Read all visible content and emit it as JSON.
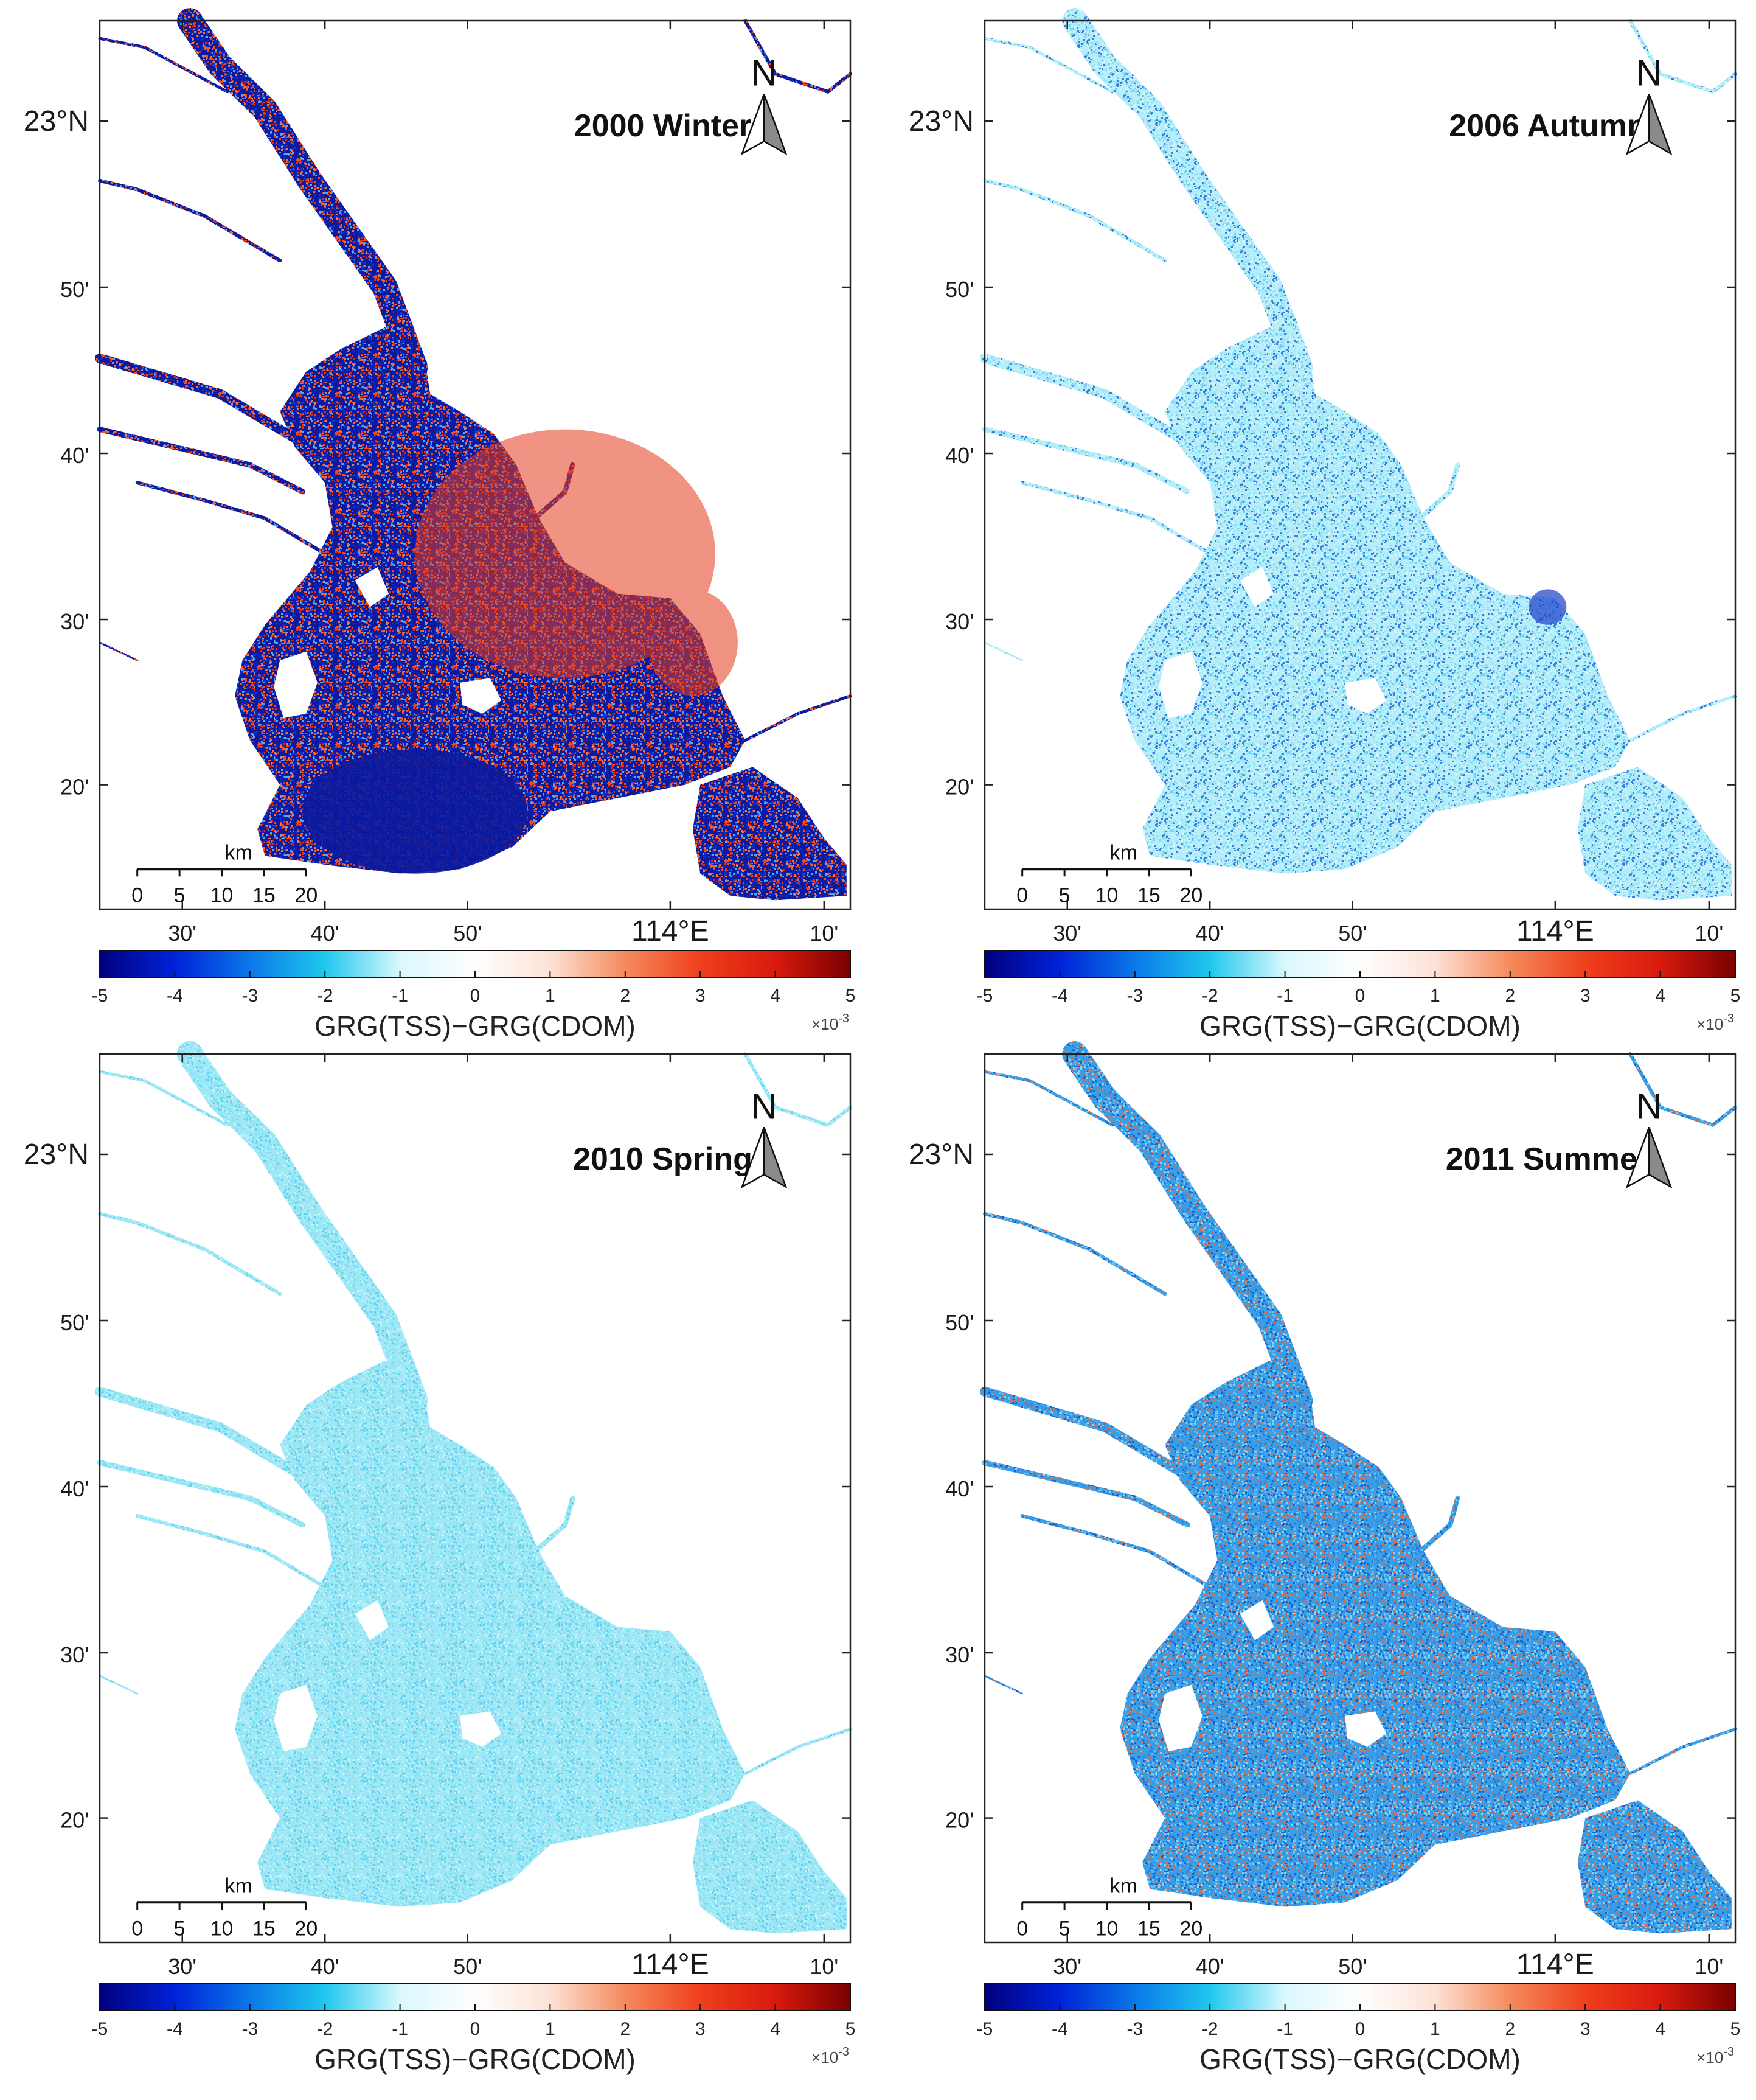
{
  "colors": {
    "map_background": "#ffffff",
    "frame": "#222222",
    "colormap": [
      "#00007f",
      "#0022d8",
      "#0a78e8",
      "#1fc8ee",
      "#d9f8fd",
      "#ffffff",
      "#fde2d6",
      "#f48a5c",
      "#ef3f1c",
      "#d81a0e",
      "#7a0000"
    ]
  },
  "shared_labels": {
    "lat_ticks": [
      "23°N",
      "50'",
      "40'",
      "30'",
      "20'"
    ],
    "lon_ticks": [
      "30'",
      "40'",
      "50'",
      "114°E",
      "10'"
    ],
    "north_letter": "N",
    "scalebar_unit": "km",
    "scalebar_ticks": [
      "0",
      "5",
      "10",
      "15",
      "20"
    ],
    "colorbar_ticks": [
      "-5",
      "-4",
      "-3",
      "-2",
      "-1",
      "0",
      "1",
      "2",
      "3",
      "4",
      "5"
    ],
    "colorbar_label": "GRG(TSS)−GRG(CDOM)",
    "colorbar_exponent_base": "×10",
    "colorbar_exponent_power": "-3"
  },
  "panels": [
    {
      "title": "2000 Winter",
      "water_tone": "mixed-red-blue",
      "palette": [
        "#0b1a9e",
        "#1030c8",
        "#d8301a",
        "#ef4a26",
        "#5aa8e8",
        "#f07048"
      ],
      "has_scalebar": true,
      "has_colorbar": true
    },
    {
      "title": "2006 Autumn",
      "water_tone": "light-cyan",
      "palette": [
        "#b8eefa",
        "#8ee0f4",
        "#d6f6fc",
        "#6fd2ef",
        "#a6e8f8",
        "#3a7fe0"
      ],
      "has_scalebar": true,
      "has_colorbar": true
    },
    {
      "title": "2010 Spring",
      "water_tone": "cyan",
      "palette": [
        "#9ee8f6",
        "#78dcf2",
        "#c4f2fb",
        "#62d0ee",
        "#b0ecf8",
        "#8ae2f4"
      ],
      "has_scalebar": true,
      "has_colorbar": true
    },
    {
      "title": "2011 Summer",
      "water_tone": "blue-speckled",
      "palette": [
        "#3a9ee6",
        "#2f84da",
        "#63c0ee",
        "#1f5fcc",
        "#86d4f2",
        "#e06a44"
      ],
      "has_scalebar": true,
      "has_colorbar": true
    }
  ]
}
